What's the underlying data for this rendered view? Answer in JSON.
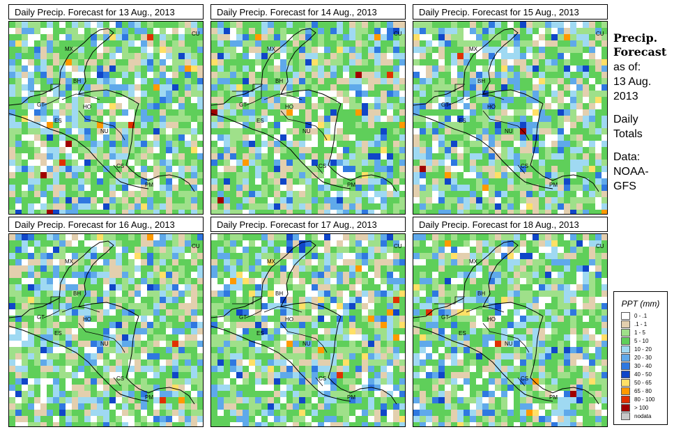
{
  "panels": [
    {
      "title": "Daily Precip. Forecast for  13 Aug., 2013"
    },
    {
      "title": "Daily Precip. Forecast for  14 Aug., 2013"
    },
    {
      "title": "Daily Precip. Forecast for  15 Aug., 2013"
    },
    {
      "title": "Daily Precip. Forecast for  16 Aug., 2013"
    },
    {
      "title": "Daily Precip. Forecast for  17 Aug., 2013"
    },
    {
      "title": "Daily Precip. Forecast for  18 Aug., 2013"
    }
  ],
  "map_labels": [
    "MX",
    "BH",
    "GT",
    "HO",
    "ES",
    "NU",
    "CS",
    "PM",
    "CU"
  ],
  "sidebar": {
    "title_line1": "Precip.",
    "title_line2": "Forecast",
    "asof_line1": "as of:",
    "asof_line2": "13 Aug.",
    "asof_line3": "2013",
    "totals_line1": "Daily",
    "totals_line2": "Totals",
    "data_line1": "Data:",
    "data_line2": "NOAA-",
    "data_line3": "GFS"
  },
  "legend": {
    "title": "PPT (mm)",
    "items": [
      {
        "label": "0 - .1",
        "color": "#ffffff"
      },
      {
        "label": ".1 - 1",
        "color": "#e3cfae"
      },
      {
        "label": "1 - 5",
        "color": "#9fe08a"
      },
      {
        "label": "5 - 10",
        "color": "#5fcf5a"
      },
      {
        "label": "10 - 20",
        "color": "#9fd9f2"
      },
      {
        "label": "20 - 30",
        "color": "#5fa9ea"
      },
      {
        "label": "30 - 40",
        "color": "#2f78e0"
      },
      {
        "label": "40 - 50",
        "color": "#1046c8"
      },
      {
        "label": "50 - 65",
        "color": "#ffe066"
      },
      {
        "label": "65 - 80",
        "color": "#ff9a00"
      },
      {
        "label": "80 - 100",
        "color": "#e03000"
      },
      {
        "label": "> 100",
        "color": "#a00000"
      },
      {
        "label": "nodata",
        "color": "#c8c8c8"
      }
    ]
  }
}
